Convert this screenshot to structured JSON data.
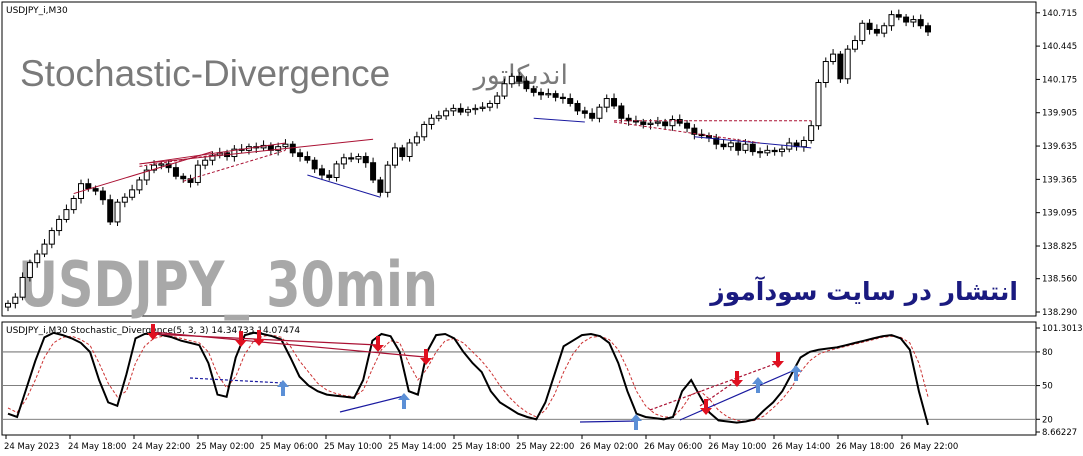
{
  "window": {
    "title": "USDJPY_i,M30"
  },
  "watermarks": {
    "top_title_en": "Stochastic-Divergence",
    "top_title_fa": "اندیکاتور",
    "big_symbol": "USDJPY_ 30min",
    "publish_note_fa": "انتشار در سایت سودآموز"
  },
  "indicator": {
    "header": "USDJPY_i,M30   Stochastic_Divergence(5, 3, 3) 14.34733 14.07474"
  },
  "colors": {
    "bull": "#000000",
    "bear": "#000000",
    "stoch_main": "#000000",
    "stoch_signal": "#cc3333",
    "div_bear": "#aa1133",
    "div_bull": "#1a1aa0",
    "arrow_down": "#e01020",
    "arrow_up": "#5b8fd6",
    "big_symbol": "#a8a8a8",
    "title": "#7a7a7a",
    "publish": "#1a1a80"
  },
  "chart_data": [
    {
      "type": "candlestick",
      "symbol": "USDJPY",
      "timeframe": "M30",
      "ylim": [
        138.29,
        140.77
      ],
      "y_ticks": [
        "140.715",
        "140.445",
        "140.175",
        "139.905",
        "139.635",
        "139.365",
        "139.095",
        "138.825",
        "138.560",
        "138.290"
      ],
      "x_ticks": [
        "24 May 2023",
        "24 May 18:00",
        "24 May 22:00",
        "25 May 02:00",
        "25 May 06:00",
        "25 May 10:00",
        "25 May 14:00",
        "25 May 18:00",
        "25 May 22:00",
        "26 May 02:00",
        "26 May 06:00",
        "26 May 10:00",
        "26 May 14:00",
        "26 May 18:00",
        "26 May 22:00"
      ],
      "closes": [
        138.36,
        138.41,
        138.57,
        138.69,
        138.76,
        138.84,
        138.95,
        139.04,
        139.12,
        139.21,
        139.33,
        139.29,
        139.27,
        139.2,
        139.02,
        139.18,
        139.22,
        139.28,
        139.36,
        139.44,
        139.48,
        139.49,
        139.46,
        139.39,
        139.37,
        139.34,
        139.48,
        139.52,
        139.56,
        139.58,
        139.55,
        139.61,
        139.6,
        139.63,
        139.62,
        139.64,
        139.6,
        139.63,
        139.65,
        139.58,
        139.55,
        139.52,
        139.45,
        139.4,
        139.38,
        139.49,
        139.54,
        139.53,
        139.55,
        139.5,
        139.36,
        139.26,
        139.48,
        139.62,
        139.55,
        139.66,
        139.71,
        139.81,
        139.86,
        139.88,
        139.92,
        139.94,
        139.91,
        139.93,
        139.94,
        139.95,
        139.98,
        140.04,
        140.14,
        140.2,
        140.16,
        140.1,
        140.07,
        140.05,
        140.06,
        140.03,
        140.02,
        139.98,
        139.92,
        139.9,
        139.86,
        139.95,
        140.02,
        139.96,
        139.86,
        139.84,
        139.83,
        139.81,
        139.82,
        139.83,
        139.8,
        139.85,
        139.82,
        139.78,
        139.73,
        139.72,
        139.7,
        139.65,
        139.63,
        139.66,
        139.6,
        139.65,
        139.59,
        139.58,
        139.6,
        139.59,
        139.61,
        139.66,
        139.63,
        139.68,
        139.8,
        140.15,
        140.32,
        140.38,
        140.18,
        140.42,
        140.49,
        140.63,
        140.58,
        140.55,
        140.61,
        140.7,
        140.68,
        140.64,
        140.66,
        140.61,
        140.56
      ],
      "close_note": "approximate M30 closes read from candle bodies"
    },
    {
      "type": "line",
      "title": "Stochastic_Divergence(5, 3, 3)",
      "values_printed": [
        14.34733,
        14.07474
      ],
      "ylim": [
        8.66227,
        101.30132
      ],
      "y_ticks": [
        "101.30132",
        "80",
        "50",
        "20",
        "8.66227"
      ],
      "levels": [
        80,
        50,
        20
      ],
      "series": [
        {
          "name": "main",
          "values": [
            25,
            22,
            47,
            72,
            93,
            97,
            95,
            92,
            88,
            80,
            55,
            35,
            32,
            60,
            92,
            96,
            97,
            95,
            93,
            90,
            88,
            86,
            70,
            42,
            40,
            75,
            95,
            97,
            96,
            94,
            91,
            75,
            58,
            50,
            45,
            42,
            41,
            40,
            39,
            55,
            90,
            96,
            94,
            80,
            45,
            42,
            80,
            95,
            96,
            92,
            80,
            70,
            62,
            45,
            35,
            30,
            25,
            22,
            20,
            35,
            60,
            85,
            90,
            95,
            96,
            94,
            88,
            70,
            45,
            25,
            22,
            21,
            20,
            22,
            45,
            55,
            40,
            26,
            19,
            18,
            17,
            18,
            20,
            28,
            35,
            45,
            60,
            75,
            80,
            82,
            83,
            84,
            86,
            88,
            90,
            92,
            94,
            95,
            92,
            82,
            45,
            15
          ]
        },
        {
          "name": "signal",
          "values": [
            30,
            26,
            38,
            55,
            75,
            88,
            93,
            94,
            91,
            86,
            70,
            52,
            40,
            45,
            70,
            85,
            92,
            94,
            94,
            92,
            90,
            88,
            80,
            60,
            48,
            58,
            78,
            90,
            94,
            95,
            93,
            85,
            72,
            62,
            52,
            46,
            43,
            41,
            40,
            46,
            65,
            82,
            90,
            88,
            70,
            55,
            65,
            80,
            90,
            92,
            88,
            80,
            72,
            62,
            50,
            40,
            32,
            26,
            22,
            28,
            42,
            62,
            78,
            88,
            93,
            94,
            91,
            82,
            65,
            45,
            32,
            25,
            22,
            22,
            30,
            42,
            45,
            38,
            28,
            22,
            19,
            18,
            19,
            23,
            30,
            38,
            48,
            62,
            72,
            78,
            81,
            83,
            85,
            87,
            89,
            91,
            93,
            94,
            93,
            88,
            70,
            40
          ]
        }
      ]
    }
  ]
}
